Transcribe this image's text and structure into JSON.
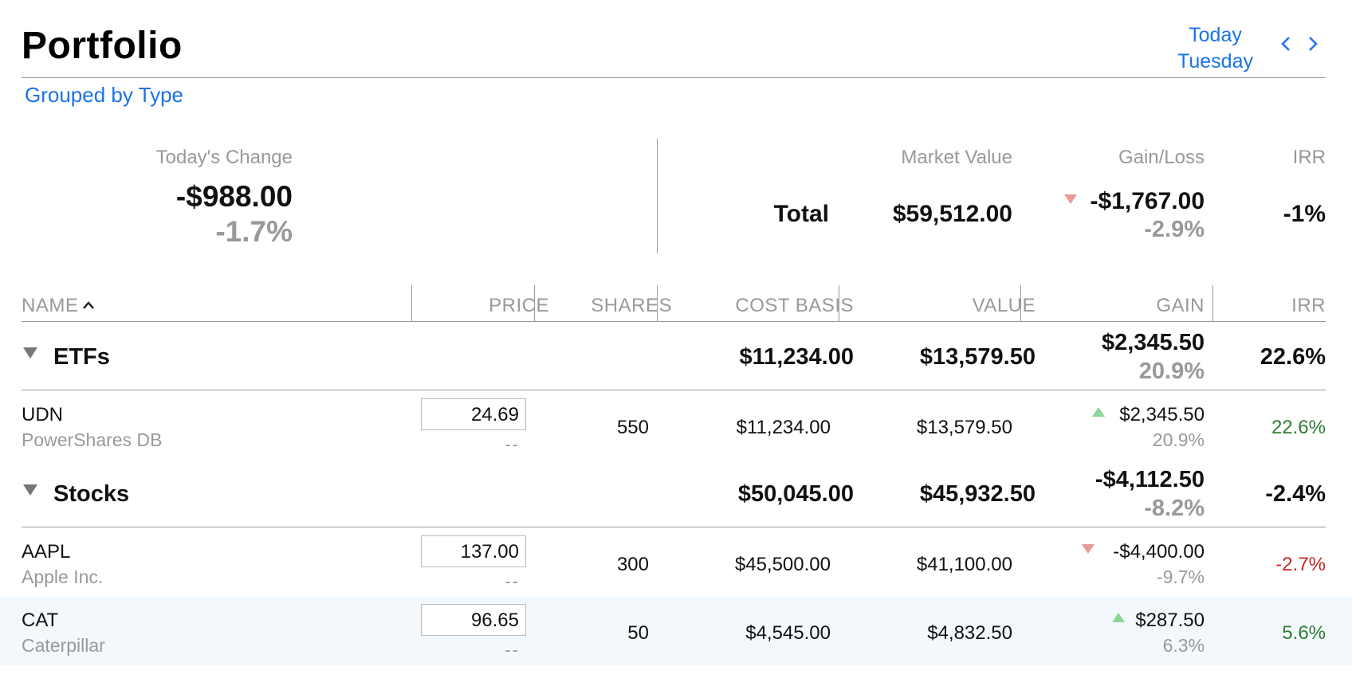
{
  "header": {
    "title": "Portfolio",
    "date_line1": "Today",
    "date_line2": "Tuesday",
    "grouping": "Grouped by Type"
  },
  "summary": {
    "todays_change_label": "Today's Change",
    "todays_change_value": "-$988.00",
    "todays_change_pct": "-1.7%",
    "market_value_label": "Market Value",
    "gain_loss_label": "Gain/Loss",
    "irr_label": "IRR",
    "total_label": "Total",
    "total_market_value": "$59,512.00",
    "total_gain": "-$1,767.00",
    "total_gain_pct": "-2.9%",
    "total_irr": "-1%"
  },
  "table": {
    "columns": {
      "name": "NAME",
      "price": "PRICE",
      "shares": "SHARES",
      "cost_basis": "COST BASIS",
      "value": "VALUE",
      "gain": "GAIN",
      "irr": "IRR"
    },
    "groups": [
      {
        "name": "ETFs",
        "cost_basis": "$11,234.00",
        "value": "$13,579.50",
        "gain": "$2,345.50",
        "gain_pct": "20.9%",
        "irr": "22.6%",
        "rows": [
          {
            "symbol": "UDN",
            "name": "PowerShares DB",
            "price": "24.69",
            "price_change": "--",
            "shares": "550",
            "cost_basis": "$11,234.00",
            "value": "$13,579.50",
            "gain": "$2,345.50",
            "gain_pct": "20.9%",
            "irr": "22.6%"
          }
        ]
      },
      {
        "name": "Stocks",
        "cost_basis": "$50,045.00",
        "value": "$45,932.50",
        "gain": "-$4,112.50",
        "gain_pct": "-8.2%",
        "irr": "-2.4%",
        "rows": [
          {
            "symbol": "AAPL",
            "name": "Apple Inc.",
            "price": "137.00",
            "price_change": "--",
            "shares": "300",
            "cost_basis": "$45,500.00",
            "value": "$41,100.00",
            "gain": "-$4,400.00",
            "gain_pct": "-9.7%",
            "irr": "-2.7%"
          },
          {
            "symbol": "CAT",
            "name": "Caterpillar",
            "price": "96.65",
            "price_change": "--",
            "shares": "50",
            "cost_basis": "$4,545.00",
            "value": "$4,832.50",
            "gain": "$287.50",
            "gain_pct": "6.3%",
            "irr": "5.6%"
          }
        ]
      }
    ]
  },
  "colors": {
    "accent": "#1a73e8",
    "positive": "#2e7d32",
    "negative": "#c62828",
    "up_arrow": "#8dd69a",
    "down_arrow": "#e89a9a"
  },
  "icons": [
    "chevron-left-icon",
    "chevron-right-icon",
    "sort-ascending-icon",
    "disclosure-triangle-icon",
    "gain-up-icon",
    "loss-down-icon"
  ]
}
